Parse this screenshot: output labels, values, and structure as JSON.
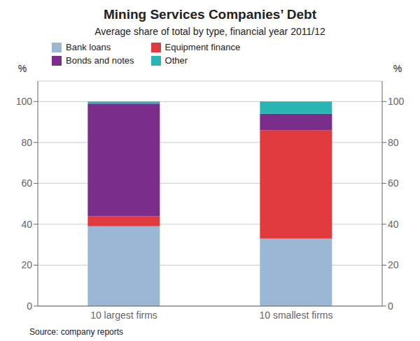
{
  "chart_data": {
    "type": "bar",
    "stacked": true,
    "title": "Mining Services Companies’ Debt",
    "subtitle": "Average share of total by type, financial year 2011/12",
    "categories": [
      "10 largest firms",
      "10 smallest firms"
    ],
    "series": [
      {
        "name": "Bank loans",
        "color": "#9ab7d3",
        "values": [
          39,
          33
        ]
      },
      {
        "name": "Equipment finance",
        "color": "#e0393e",
        "values": [
          5,
          53
        ]
      },
      {
        "name": "Bonds and notes",
        "color": "#7b2d8b",
        "values": [
          55,
          8
        ]
      },
      {
        "name": "Other",
        "color": "#2ab5b5",
        "values": [
          1,
          6
        ]
      }
    ],
    "legend_order": [
      "Bank loans",
      "Bonds and notes",
      "Equipment finance",
      "Other"
    ],
    "legend": "upper left",
    "ylim": [
      0,
      110
    ],
    "yticks": [
      0,
      20,
      40,
      60,
      80,
      100
    ],
    "ylabel": "%",
    "y2lim": [
      0,
      110
    ],
    "y2ticks": [
      0,
      20,
      40,
      60,
      80,
      100
    ],
    "y2label": "%",
    "grid": true,
    "source": "Source: company reports"
  }
}
